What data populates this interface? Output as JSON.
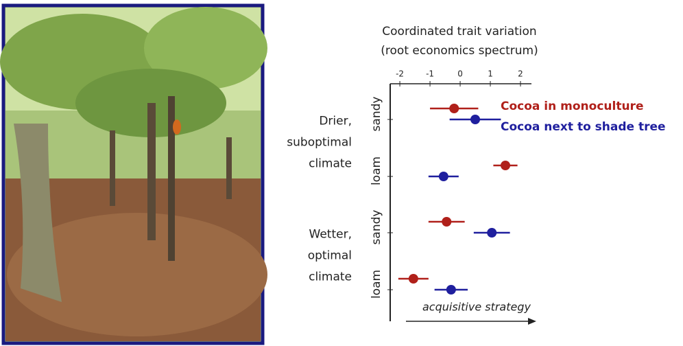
{
  "chart_data": {
    "type": "dotplot",
    "title": "Coordinated trait variation",
    "subtitle": "(root economics spectrum)",
    "categories": [
      "sandy",
      "loam",
      "sandy",
      "loam"
    ],
    "groups": [
      {
        "lines": [
          "Drier,",
          "suboptimal",
          "climate"
        ],
        "rows": [
          0,
          1
        ]
      },
      {
        "lines": [
          "Wetter,",
          "optimal",
          "climate"
        ],
        "rows": [
          2,
          3
        ]
      }
    ],
    "xlim": [
      -2.32,
      2.25
    ],
    "xticks": [
      -2,
      -1,
      0,
      1,
      2
    ],
    "annotation": "acquisitive strategy",
    "series": [
      {
        "name": "Cocoa in monoculture",
        "color": "#b0201a",
        "values": [
          -0.2,
          1.5,
          -0.45,
          -1.55
        ],
        "errors": [
          0.8,
          0.4,
          0.6,
          0.5
        ]
      },
      {
        "name": "Cocoa next to shade tree",
        "color": "#1f1f9e",
        "values": [
          0.5,
          -0.55,
          1.05,
          -0.3
        ],
        "errors": [
          0.85,
          0.5,
          0.6,
          0.55
        ]
      }
    ]
  }
}
